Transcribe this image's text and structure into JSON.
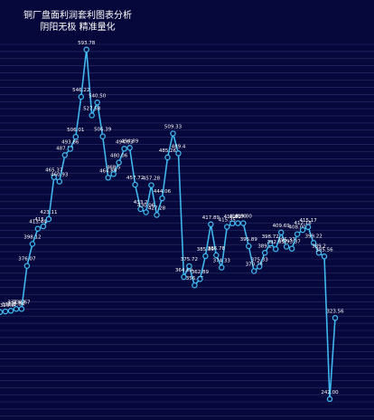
{
  "header": {
    "title": "铜厂盘面利润套利图表分析",
    "subtitle": "阴阳无极 精准量化"
  },
  "chart_data": {
    "type": "line",
    "title": "铜厂盘面利润套利图表分析",
    "subtitle": "阴阳无极 精准量化",
    "xlabel": "",
    "ylabel": "",
    "ylim": [
      230,
      600
    ],
    "grid": true,
    "colors": {
      "background": "#06073a",
      "line": "#3fb6ec",
      "label": "#ffffff",
      "grid": "#2a3470"
    },
    "series": [
      {
        "values": [
          329.5,
          330.2,
          330.84,
          332.67,
          332.67,
          376.07,
          398.12,
          413.44,
          415.85,
          423.11,
          465.37,
          460.93,
          487.58,
          493.86,
          506.01,
          546.22,
          593.78,
          527.58,
          540.5,
          506.39,
          464.89,
          468.5,
          480.06,
          494.03,
          494.89,
          457.72,
          433.2,
          430.06,
          457.28,
          427.28,
          444.06,
          485.26,
          509.33,
          489.4,
          364.89,
          375.72,
          356.47,
          362.89,
          385.89,
          417.89,
          386.78,
          374.33,
          415.35,
          418.81,
          419.0,
          419.0,
          395.89,
          370.78,
          375.33,
          389.2,
          398.72,
          392.95,
          409.69,
          395.37,
          393.37,
          408.0,
          412.18,
          415.17,
          399.22,
          389.2,
          385.56,
          242.0,
          323.56
        ]
      }
    ],
    "data_labels": [
      "329.5",
      "330.2",
      "330.84",
      "332.67",
      "332.67",
      "376.07",
      "398.12",
      "413.44",
      "415.85",
      "423.11",
      "465.37",
      "460.93",
      "487.58",
      "493.86",
      "506.01",
      "546.22",
      "593.78",
      "527.58",
      "540.50",
      "506.39",
      "464.89",
      "468.5",
      "480.06",
      "494.03",
      "494.89",
      "457.72",
      "433.2",
      "430.06",
      "457.28",
      "427.28",
      "444.06",
      "485.26",
      "509.33",
      "489.4",
      "364.89",
      "375.72",
      "356.47",
      "362.89",
      "385.89",
      "417.89",
      "386.78",
      "374.33",
      "415.35",
      "418.81",
      "419.00",
      "419.00",
      "395.89",
      "370.78",
      "375.33",
      "389.2",
      "398.72",
      "392.95",
      "409.69",
      "395.37",
      "393.37",
      "408.00",
      "412.18",
      "415.17",
      "399.22",
      "389.2",
      "385.56",
      "242.00",
      "323.56"
    ]
  }
}
